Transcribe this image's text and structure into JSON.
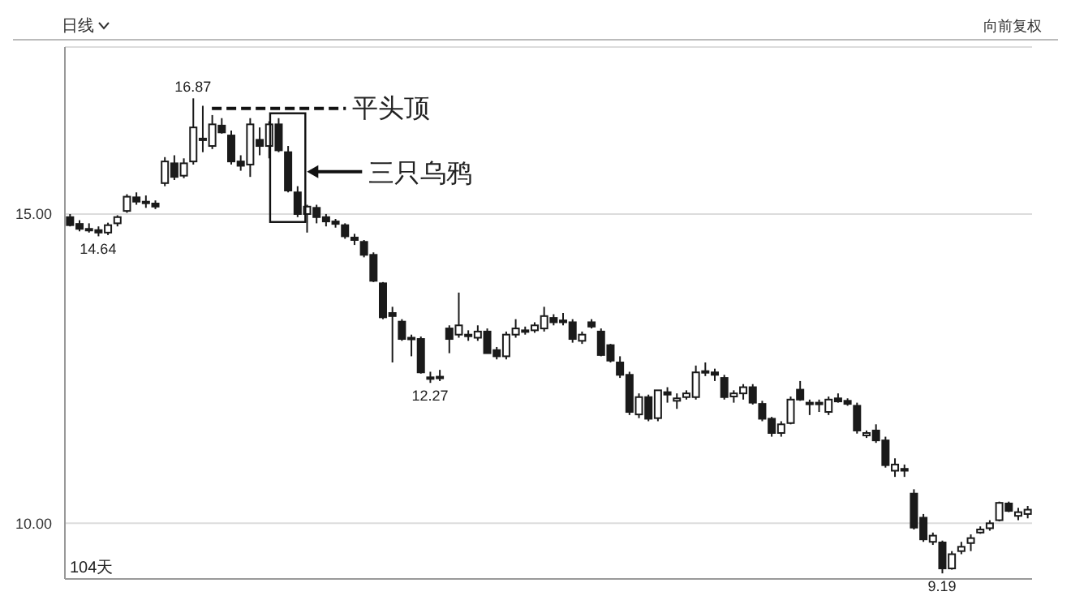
{
  "chart_data": {
    "type": "candlestick",
    "title": "日线",
    "color": "#1a1a1a",
    "categories": [
      null,
      null,
      null,
      null,
      null,
      null,
      null,
      null,
      null,
      null,
      null,
      null,
      null,
      null,
      null,
      null,
      null,
      null,
      null,
      null,
      null,
      null,
      null,
      null,
      null,
      null,
      null,
      null,
      null,
      null,
      null,
      null,
      null,
      null,
      null,
      null,
      null,
      null,
      null,
      null,
      null,
      null,
      null,
      null,
      null,
      null,
      null,
      null,
      null,
      null,
      null,
      null,
      null,
      null,
      null,
      null,
      null,
      null,
      null,
      null,
      null,
      null,
      null,
      null,
      null,
      null,
      null,
      null,
      null,
      null,
      null,
      null,
      null,
      null,
      null,
      null,
      null,
      null,
      null,
      null,
      null,
      null,
      null,
      null,
      null,
      null,
      null,
      null,
      null,
      null,
      null,
      null,
      null,
      null,
      null,
      null,
      null,
      null,
      null,
      null,
      null,
      null
    ],
    "ohlc": [
      [
        14.95,
        15.0,
        14.8,
        14.82
      ],
      [
        14.84,
        14.9,
        14.72,
        14.76
      ],
      [
        14.76,
        14.85,
        14.7,
        14.75
      ],
      [
        14.74,
        14.8,
        14.64,
        14.7
      ],
      [
        14.7,
        14.86,
        14.66,
        14.82
      ],
      [
        14.85,
        14.98,
        14.8,
        14.95
      ],
      [
        15.05,
        15.32,
        15.02,
        15.28
      ],
      [
        15.27,
        15.35,
        15.15,
        15.2
      ],
      [
        15.2,
        15.3,
        15.1,
        15.18
      ],
      [
        15.17,
        15.22,
        15.08,
        15.12
      ],
      [
        15.5,
        15.92,
        15.45,
        15.85
      ],
      [
        15.82,
        15.95,
        15.55,
        15.6
      ],
      [
        15.62,
        15.9,
        15.58,
        15.82
      ],
      [
        15.85,
        16.87,
        15.8,
        16.4
      ],
      [
        16.22,
        16.75,
        16.0,
        16.2
      ],
      [
        16.1,
        16.6,
        16.05,
        16.45
      ],
      [
        16.43,
        16.55,
        16.3,
        16.32
      ],
      [
        16.27,
        16.35,
        15.8,
        15.85
      ],
      [
        15.85,
        15.95,
        15.7,
        15.78
      ],
      [
        15.8,
        16.55,
        15.6,
        16.45
      ],
      [
        16.2,
        16.4,
        15.95,
        16.1
      ],
      [
        16.1,
        16.5,
        15.9,
        16.45
      ],
      [
        16.45,
        16.55,
        16.0,
        16.03
      ],
      [
        16.0,
        16.1,
        15.35,
        15.38
      ],
      [
        15.35,
        15.45,
        14.95,
        15.0
      ],
      [
        15.0,
        15.15,
        14.7,
        15.12
      ],
      [
        15.1,
        15.15,
        14.85,
        14.95
      ],
      [
        14.95,
        15.0,
        14.8,
        14.88
      ],
      [
        14.88,
        14.92,
        14.78,
        14.84
      ],
      [
        14.82,
        14.85,
        14.6,
        14.64
      ],
      [
        14.62,
        14.68,
        14.5,
        14.58
      ],
      [
        14.55,
        14.58,
        14.3,
        14.34
      ],
      [
        14.34,
        14.38,
        13.9,
        13.92
      ],
      [
        13.88,
        13.9,
        13.3,
        13.33
      ],
      [
        13.4,
        13.5,
        12.6,
        13.35
      ],
      [
        13.26,
        13.3,
        12.95,
        12.98
      ],
      [
        12.98,
        13.05,
        12.7,
        13.0
      ],
      [
        12.98,
        13.02,
        12.42,
        12.44
      ],
      [
        12.36,
        12.45,
        12.27,
        12.34
      ],
      [
        12.35,
        12.48,
        12.3,
        12.37
      ],
      [
        13.15,
        13.2,
        12.75,
        12.98
      ],
      [
        13.05,
        13.73,
        13.0,
        13.2
      ],
      [
        13.05,
        13.12,
        12.95,
        13.05
      ],
      [
        13.0,
        13.2,
        12.95,
        13.1
      ],
      [
        13.1,
        13.15,
        12.75,
        12.75
      ],
      [
        12.8,
        12.85,
        12.65,
        12.7
      ],
      [
        12.7,
        13.1,
        12.65,
        13.05
      ],
      [
        13.05,
        13.3,
        13.0,
        13.15
      ],
      [
        13.12,
        13.18,
        13.05,
        13.12
      ],
      [
        13.12,
        13.25,
        13.08,
        13.2
      ],
      [
        13.15,
        13.5,
        13.1,
        13.35
      ],
      [
        13.32,
        13.38,
        13.2,
        13.25
      ],
      [
        13.28,
        13.4,
        13.2,
        13.25
      ],
      [
        13.25,
        13.3,
        12.92,
        12.98
      ],
      [
        12.95,
        13.1,
        12.9,
        13.05
      ],
      [
        13.25,
        13.3,
        13.15,
        13.18
      ],
      [
        13.1,
        13.15,
        12.7,
        12.72
      ],
      [
        12.88,
        12.9,
        12.6,
        12.63
      ],
      [
        12.6,
        12.7,
        12.35,
        12.4
      ],
      [
        12.4,
        12.45,
        11.75,
        11.8
      ],
      [
        11.76,
        12.1,
        11.7,
        12.04
      ],
      [
        12.04,
        12.08,
        11.65,
        11.69
      ],
      [
        11.7,
        12.15,
        11.65,
        12.15
      ],
      [
        12.12,
        12.2,
        11.95,
        12.08
      ],
      [
        11.98,
        12.1,
        11.85,
        12.02
      ],
      [
        12.04,
        12.15,
        12.0,
        12.1
      ],
      [
        12.04,
        12.55,
        12.0,
        12.44
      ],
      [
        12.45,
        12.6,
        12.38,
        12.46
      ],
      [
        12.44,
        12.5,
        12.3,
        12.4
      ],
      [
        12.35,
        12.4,
        12.0,
        12.04
      ],
      [
        12.05,
        12.15,
        11.95,
        12.1
      ],
      [
        12.1,
        12.25,
        12.0,
        12.2
      ],
      [
        12.2,
        12.25,
        11.92,
        11.95
      ],
      [
        11.93,
        11.98,
        11.65,
        11.69
      ],
      [
        11.69,
        11.72,
        11.4,
        11.46
      ],
      [
        11.46,
        11.65,
        11.4,
        11.6
      ],
      [
        11.62,
        12.05,
        11.6,
        12.0
      ],
      [
        12.16,
        12.3,
        11.98,
        12.0
      ],
      [
        11.95,
        12.0,
        11.75,
        11.94
      ],
      [
        11.95,
        12.0,
        11.8,
        11.93
      ],
      [
        11.8,
        12.05,
        11.75,
        12.0
      ],
      [
        12.02,
        12.1,
        11.95,
        11.97
      ],
      [
        11.98,
        12.02,
        11.9,
        11.93
      ],
      [
        11.9,
        11.95,
        11.45,
        11.5
      ],
      [
        11.42,
        11.5,
        11.38,
        11.46
      ],
      [
        11.5,
        11.6,
        11.3,
        11.34
      ],
      [
        11.34,
        11.4,
        10.9,
        10.94
      ],
      [
        10.85,
        11.05,
        10.75,
        10.95
      ],
      [
        10.88,
        10.95,
        10.75,
        10.85
      ],
      [
        10.48,
        10.55,
        9.9,
        9.93
      ],
      [
        10.09,
        10.15,
        9.7,
        9.74
      ],
      [
        9.7,
        9.85,
        9.65,
        9.8
      ],
      [
        9.69,
        9.72,
        9.19,
        9.27
      ],
      [
        9.27,
        9.55,
        9.25,
        9.5
      ],
      [
        9.55,
        9.7,
        9.5,
        9.62
      ],
      [
        9.68,
        9.82,
        9.55,
        9.76
      ],
      [
        9.85,
        9.95,
        9.83,
        9.9
      ],
      [
        9.92,
        10.05,
        9.88,
        10.0
      ],
      [
        10.05,
        10.35,
        10.03,
        10.33
      ],
      [
        10.32,
        10.35,
        10.18,
        10.2
      ],
      [
        10.12,
        10.25,
        10.05,
        10.18
      ],
      [
        10.15,
        10.28,
        10.08,
        10.22
      ]
    ],
    "ylim": [
      9.1,
      17.7
    ],
    "yticks": [
      {
        "value": 15,
        "label": "15.00"
      },
      {
        "value": 10,
        "label": "10.00"
      }
    ],
    "grid": "y",
    "annotations": [
      {
        "text": "16.87",
        "y": 16.87
      },
      {
        "text": "14.64",
        "y": 14.64
      },
      {
        "text": "12.27",
        "y": 12.27
      },
      {
        "text": "9.19",
        "y": 9.19
      },
      "平头顶",
      "三只乌鸦",
      "向前复权",
      "104天"
    ]
  }
}
